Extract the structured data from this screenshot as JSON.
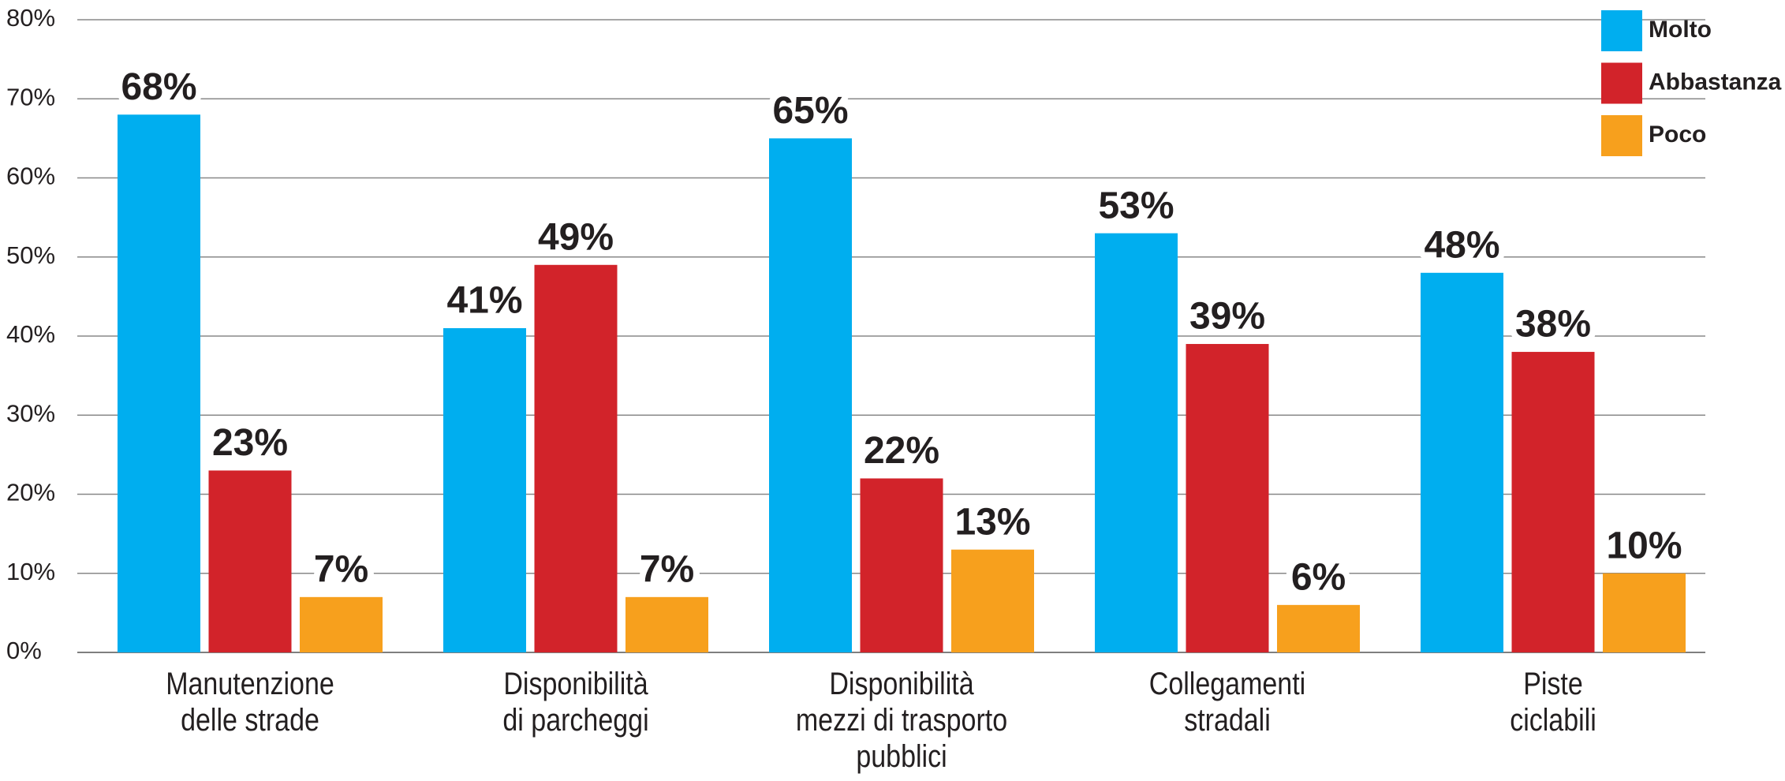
{
  "chart_data": {
    "type": "bar",
    "categories": [
      "Manutenzione\ndelle strade",
      "Disponibilità\ndi parcheggi",
      "Disponibilità\nmezzi di trasporto\npubblici",
      "Collegamenti\nstradali",
      "Piste\nciclabili"
    ],
    "series": [
      {
        "name": "Molto",
        "color": "#00aeef",
        "values": [
          68,
          41,
          65,
          53,
          48
        ],
        "value_labels": [
          "68%",
          "41%",
          "65%",
          "53%",
          "48%"
        ]
      },
      {
        "name": "Abbastanza",
        "color": "#d2232a",
        "values": [
          23,
          49,
          22,
          39,
          38
        ],
        "value_labels": [
          "23%",
          "49%",
          "22%",
          "39%",
          "38%"
        ]
      },
      {
        "name": "Poco",
        "color": "#f7a01d",
        "values": [
          7,
          7,
          13,
          6,
          10
        ],
        "value_labels": [
          "7%",
          "7%",
          "13%",
          "6%",
          "10%"
        ]
      }
    ],
    "ylim": [
      0,
      80
    ],
    "yticks": [
      {
        "value": 0,
        "label": "0%"
      },
      {
        "value": 10,
        "label": "10%"
      },
      {
        "value": 20,
        "label": "20%"
      },
      {
        "value": 30,
        "label": "30%"
      },
      {
        "value": 40,
        "label": "40%"
      },
      {
        "value": 50,
        "label": "50%"
      },
      {
        "value": 60,
        "label": "60%"
      },
      {
        "value": 70,
        "label": "70%"
      },
      {
        "value": 80,
        "label": "80%"
      }
    ],
    "grid": true,
    "legend": "top-right"
  }
}
